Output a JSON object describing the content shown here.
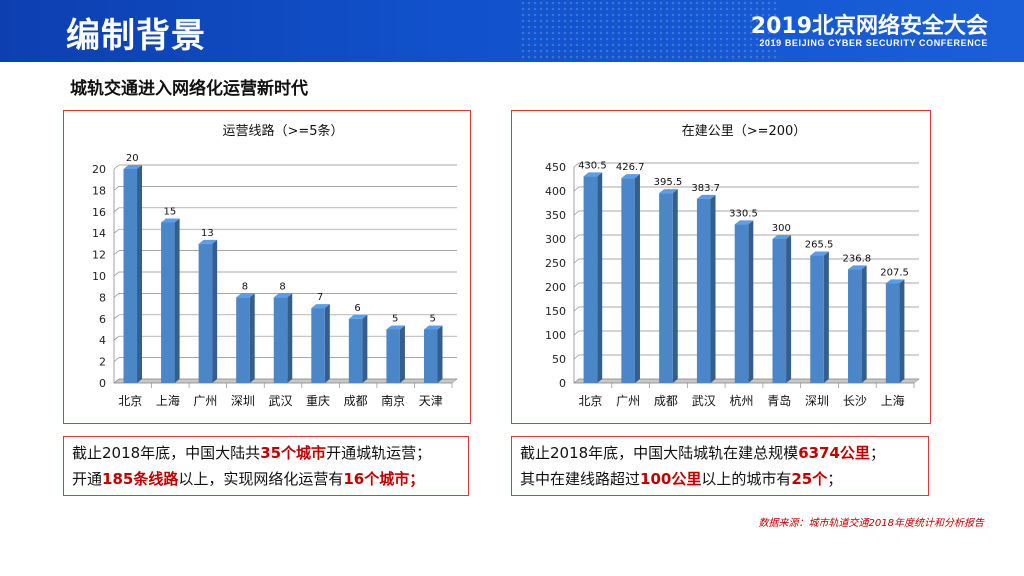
{
  "header": {
    "title": "编制背景",
    "conference_title": "2019北京网络安全大会",
    "conference_subtitle": "2019 BEIJING CYBER SECURITY CONFERENCE"
  },
  "subtitle": "城轨交通进入网络化运营新时代",
  "chart_data": [
    {
      "type": "bar",
      "title": "运营线路（>=5条）",
      "categories": [
        "北京",
        "上海",
        "广州",
        "深圳",
        "武汉",
        "重庆",
        "成都",
        "南京",
        "天津"
      ],
      "values": [
        20,
        15,
        13,
        8,
        8,
        7,
        6,
        5,
        5
      ],
      "data_labels": [
        "20",
        "15",
        "13",
        "8",
        "8",
        "7",
        "6",
        "5",
        "5"
      ],
      "ylim": [
        0,
        20
      ],
      "yticks": [
        "0",
        "2",
        "4",
        "6",
        "8",
        "10",
        "12",
        "14",
        "16",
        "18",
        "20"
      ],
      "grid": true,
      "color": "#4a86c8"
    },
    {
      "type": "bar",
      "title": "在建公里（>=200）",
      "categories": [
        "北京",
        "广州",
        "成都",
        "武汉",
        "杭州",
        "青岛",
        "深圳",
        "长沙",
        "上海"
      ],
      "values": [
        430.5,
        426.7,
        395.5,
        383.7,
        330.5,
        300,
        265.5,
        236.8,
        207.5
      ],
      "data_labels": [
        "430.5",
        "426.7",
        "395.5",
        "383.7",
        "330.5",
        "300",
        "265.5",
        "236.8",
        "207.5"
      ],
      "ylim": [
        0,
        450
      ],
      "yticks": [
        "0",
        "50",
        "100",
        "150",
        "200",
        "250",
        "300",
        "350",
        "400",
        "450"
      ],
      "grid": true,
      "color": "#4a86c8"
    }
  ],
  "captions": {
    "left": {
      "line1_a": "截止2018年底，中国大陆共",
      "line1_b": "35个城市",
      "line1_c": "开通城轨运营；",
      "line2_a": "开通",
      "line2_b": "185条线路",
      "line2_c": "以上，实现网络化运营有",
      "line2_d": "16个城市；"
    },
    "right": {
      "line1_a": "截止2018年底，中国大陆城轨在建总规模",
      "line1_b": "6374公里",
      "line1_c": "；",
      "line2_a": "其中在建线路超过",
      "line2_b": "100公里",
      "line2_c": "以上的城市有",
      "line2_d": "25个",
      "line2_e": "；"
    }
  },
  "source": "数据来源：城市轨道交通2018年度统计和分析报告"
}
